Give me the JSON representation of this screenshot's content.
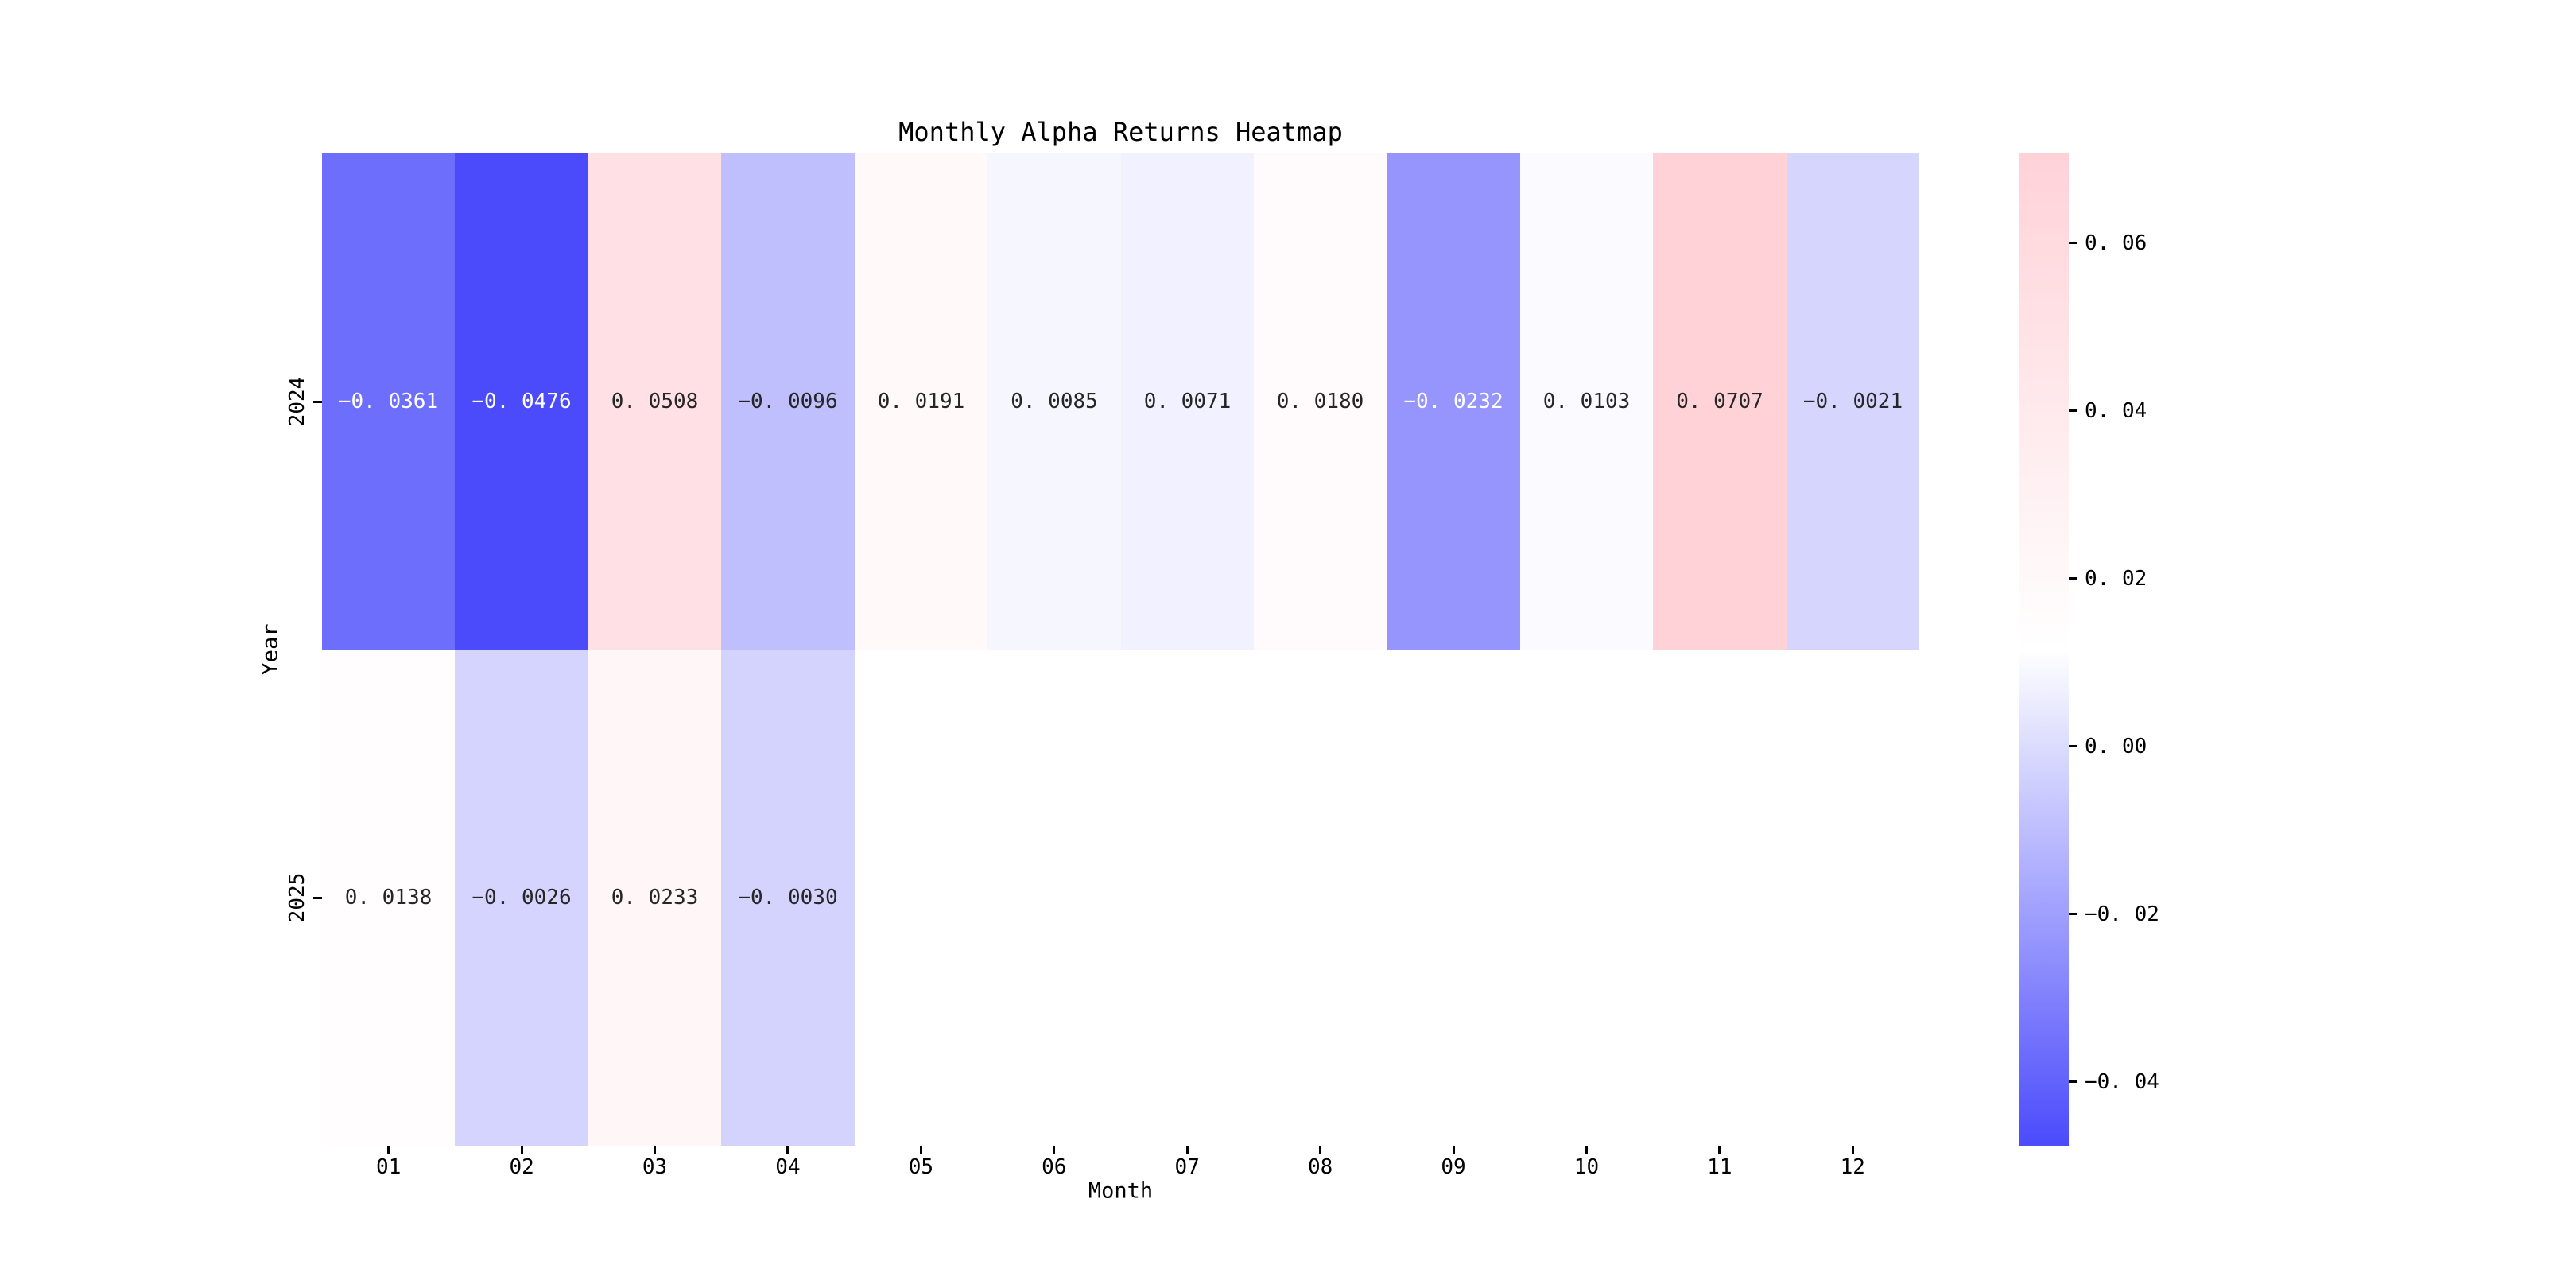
{
  "chart_data": {
    "type": "heatmap",
    "title": "Monthly Alpha Returns Heatmap",
    "xlabel": "Month",
    "ylabel": "Year",
    "x_categories": [
      "01",
      "02",
      "03",
      "04",
      "05",
      "06",
      "07",
      "08",
      "09",
      "10",
      "11",
      "12"
    ],
    "y_categories": [
      "2024",
      "2025"
    ],
    "series": [
      {
        "name": "2024",
        "values": [
          -0.0361,
          -0.0476,
          0.0508,
          -0.0096,
          0.0191,
          0.0085,
          0.0071,
          0.018,
          -0.0232,
          0.0103,
          0.0707,
          -0.0021
        ]
      },
      {
        "name": "2025",
        "values": [
          0.0138,
          -0.0026,
          0.0233,
          -0.003,
          null,
          null,
          null,
          null,
          null,
          null,
          null,
          null
        ]
      }
    ],
    "vmin": -0.0476,
    "vmax": 0.0707,
    "colorbar_ticks": [
      0.06,
      0.04,
      0.02,
      0.0,
      -0.02,
      -0.04
    ],
    "colormap": {
      "min_color": "#4B4BFC",
      "mid_color": "#FFFFFF",
      "max_color": "#FFD2D8",
      "midpoint": "mean of vmin and vmax"
    },
    "annotation_decimals": 4,
    "colorbar_tick_decimals": 2,
    "cell_text_dark": "#262626",
    "cell_text_light": "#FFFFFF",
    "grid": false,
    "legend_position": "right-colorbar"
  }
}
